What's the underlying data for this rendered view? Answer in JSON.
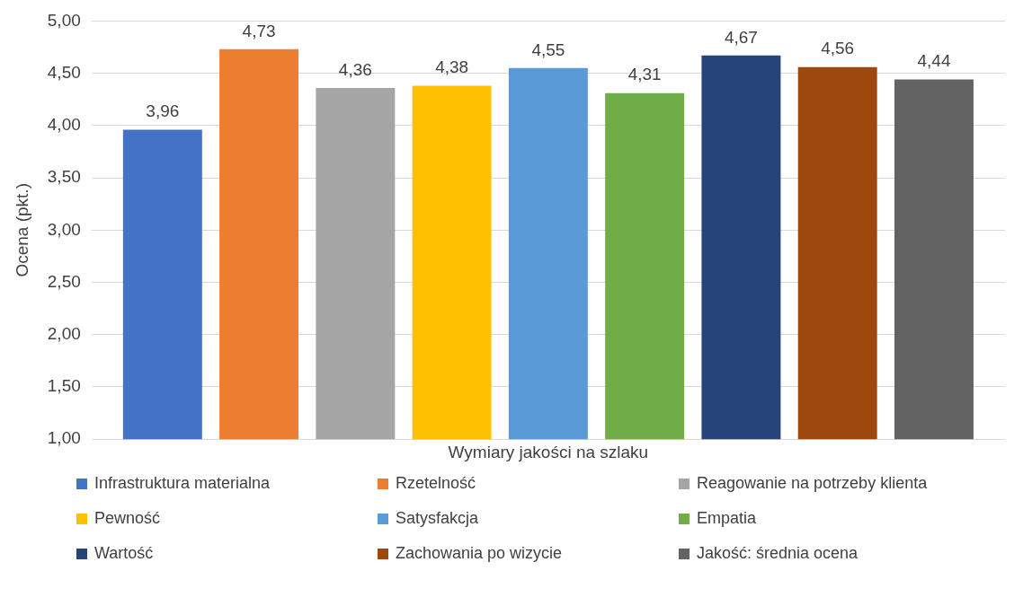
{
  "chart_data": {
    "type": "bar",
    "xlabel": "Wymiary jakości na szlaku",
    "ylabel": "Ocena (pkt.)",
    "categories": [
      null
    ],
    "series": [
      {
        "name": "Infrastruktura materialna",
        "color": "#4472c4",
        "values": [
          3.96
        ],
        "value_labels": [
          "3,96"
        ]
      },
      {
        "name": "Rzetelność",
        "color": "#ed7d31",
        "values": [
          4.73
        ],
        "value_labels": [
          "4,73"
        ]
      },
      {
        "name": "Reagowanie na potrzeby klienta",
        "color": "#a5a5a5",
        "values": [
          4.36
        ],
        "value_labels": [
          "4,36"
        ]
      },
      {
        "name": "Pewność",
        "color": "#ffc000",
        "values": [
          4.38
        ],
        "value_labels": [
          "4,38"
        ]
      },
      {
        "name": "Satysfakcja",
        "color": "#5b9bd5",
        "values": [
          4.55
        ],
        "value_labels": [
          "4,55"
        ]
      },
      {
        "name": "Empatia",
        "color": "#70ad47",
        "values": [
          4.31
        ],
        "value_labels": [
          "4,31"
        ]
      },
      {
        "name": "Wartość",
        "color": "#264478",
        "values": [
          4.67
        ],
        "value_labels": [
          "4,67"
        ]
      },
      {
        "name": "Zachowania po wizycie",
        "color": "#9e480e",
        "values": [
          4.56
        ],
        "value_labels": [
          "4,56"
        ]
      },
      {
        "name": "Jakość: średnia ocena",
        "color": "#636363",
        "values": [
          4.44
        ],
        "value_labels": [
          "4,44"
        ]
      }
    ],
    "ylim": [
      1,
      5
    ],
    "yticks": [
      {
        "value": 1,
        "label": "1,00"
      },
      {
        "value": 1.5,
        "label": "1,50"
      },
      {
        "value": 2,
        "label": "2,00"
      },
      {
        "value": 2.5,
        "label": "2,50"
      },
      {
        "value": 3,
        "label": "3,00"
      },
      {
        "value": 3.5,
        "label": "3,50"
      },
      {
        "value": 4,
        "label": "4,00"
      },
      {
        "value": 4.5,
        "label": "4,50"
      },
      {
        "value": 5,
        "label": "5,00"
      }
    ],
    "grid": "y",
    "legend": "bottom"
  }
}
